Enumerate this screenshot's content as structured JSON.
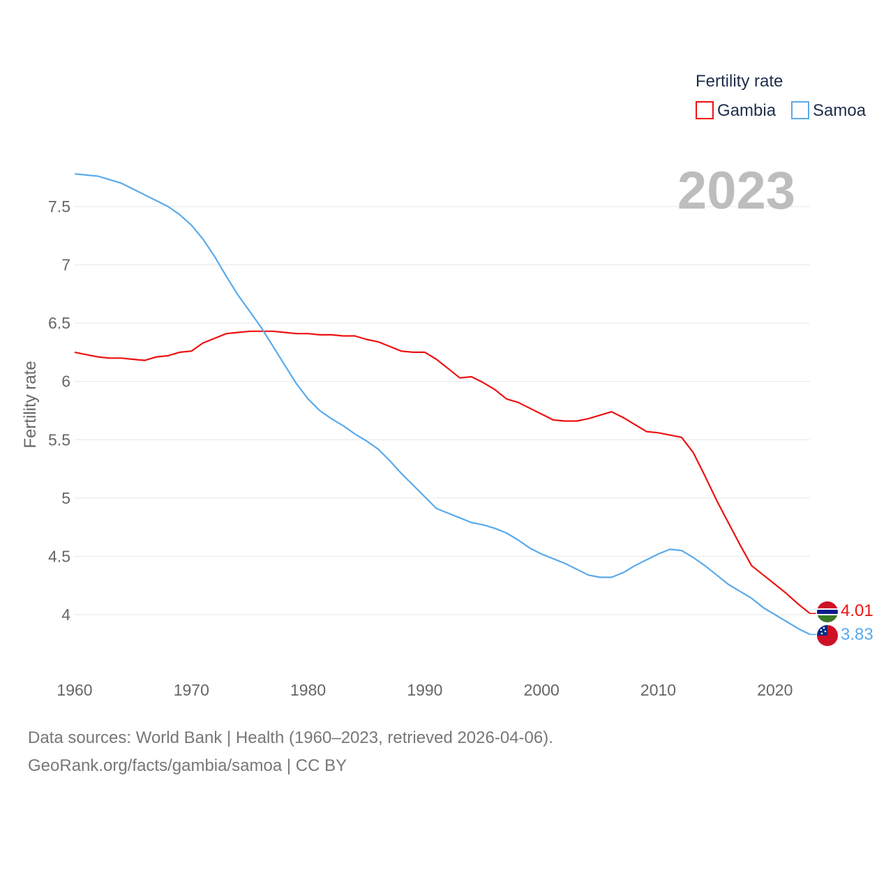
{
  "chart_data": {
    "type": "line",
    "ylabel": "Fertility rate",
    "xlabel": "",
    "xlim": [
      1960,
      2023
    ],
    "ylim": [
      3.65,
      7.85
    ],
    "yticks": [
      4,
      4.5,
      5,
      5.5,
      6,
      6.5,
      7,
      7.5
    ],
    "ytick_labels": [
      "4",
      "4.5",
      "5",
      "5.5",
      "6",
      "6.5",
      "7",
      "7.5"
    ],
    "xticks": [
      1960,
      1970,
      1980,
      1990,
      2000,
      2010,
      2020
    ],
    "xtick_labels": [
      "1960",
      "1970",
      "1980",
      "1990",
      "2000",
      "2010",
      "2020"
    ],
    "year_label": "2023",
    "legend": {
      "title": "Fertility rate",
      "position": "top-right"
    },
    "series": [
      {
        "name": "Gambia",
        "color": "#ee1111",
        "end_label": "4.01",
        "x": [
          1960,
          1961,
          1962,
          1963,
          1964,
          1965,
          1966,
          1967,
          1968,
          1969,
          1970,
          1971,
          1972,
          1973,
          1974,
          1975,
          1976,
          1977,
          1978,
          1979,
          1980,
          1981,
          1982,
          1983,
          1984,
          1985,
          1986,
          1987,
          1988,
          1989,
          1990,
          1991,
          1992,
          1993,
          1994,
          1995,
          1996,
          1997,
          1998,
          1999,
          2000,
          2001,
          2002,
          2003,
          2004,
          2005,
          2006,
          2007,
          2008,
          2009,
          2010,
          2011,
          2012,
          2013,
          2014,
          2015,
          2016,
          2017,
          2018,
          2019,
          2020,
          2021,
          2022,
          2023
        ],
        "values": [
          6.25,
          6.23,
          6.21,
          6.2,
          6.2,
          6.19,
          6.18,
          6.21,
          6.22,
          6.25,
          6.26,
          6.33,
          6.37,
          6.41,
          6.42,
          6.43,
          6.43,
          6.43,
          6.42,
          6.41,
          6.41,
          6.4,
          6.4,
          6.39,
          6.39,
          6.36,
          6.34,
          6.3,
          6.26,
          6.25,
          6.25,
          6.19,
          6.11,
          6.03,
          6.04,
          5.99,
          5.93,
          5.85,
          5.82,
          5.77,
          5.72,
          5.67,
          5.66,
          5.66,
          5.68,
          5.71,
          5.74,
          5.69,
          5.63,
          5.57,
          5.56,
          5.54,
          5.52,
          5.39,
          5.19,
          4.98,
          4.79,
          4.6,
          4.42,
          4.34,
          4.26,
          4.18,
          4.09,
          4.01
        ]
      },
      {
        "name": "Samoa",
        "color": "#5aaaeb",
        "end_label": "3.83",
        "x": [
          1960,
          1961,
          1962,
          1963,
          1964,
          1965,
          1966,
          1967,
          1968,
          1969,
          1970,
          1971,
          1972,
          1973,
          1974,
          1975,
          1976,
          1977,
          1978,
          1979,
          1980,
          1981,
          1982,
          1983,
          1984,
          1985,
          1986,
          1987,
          1988,
          1989,
          1990,
          1991,
          1992,
          1993,
          1994,
          1995,
          1996,
          1997,
          1998,
          1999,
          2000,
          2001,
          2002,
          2003,
          2004,
          2005,
          2006,
          2007,
          2008,
          2009,
          2010,
          2011,
          2012,
          2013,
          2014,
          2015,
          2016,
          2017,
          2018,
          2019,
          2020,
          2021,
          2022,
          2023
        ],
        "values": [
          7.78,
          7.77,
          7.76,
          7.73,
          7.7,
          7.65,
          7.6,
          7.55,
          7.5,
          7.43,
          7.34,
          7.22,
          7.07,
          6.9,
          6.74,
          6.6,
          6.46,
          6.3,
          6.14,
          5.98,
          5.85,
          5.75,
          5.68,
          5.62,
          5.55,
          5.49,
          5.42,
          5.32,
          5.21,
          5.11,
          5.01,
          4.91,
          4.87,
          4.83,
          4.79,
          4.77,
          4.74,
          4.7,
          4.64,
          4.57,
          4.52,
          4.48,
          4.44,
          4.39,
          4.34,
          4.32,
          4.32,
          4.36,
          4.42,
          4.47,
          4.52,
          4.56,
          4.55,
          4.49,
          4.42,
          4.34,
          4.26,
          4.2,
          4.14,
          4.06,
          4.0,
          3.94,
          3.88,
          3.83
        ]
      }
    ]
  },
  "footer": {
    "sources": "Data sources: World Bank | Health (1960–2023, retrieved 2026-04-06).",
    "credit": "GeoRank.org/facts/gambia/samoa | CC BY"
  },
  "icons": [
    "gambia-flag-icon",
    "samoa-flag-icon"
  ]
}
